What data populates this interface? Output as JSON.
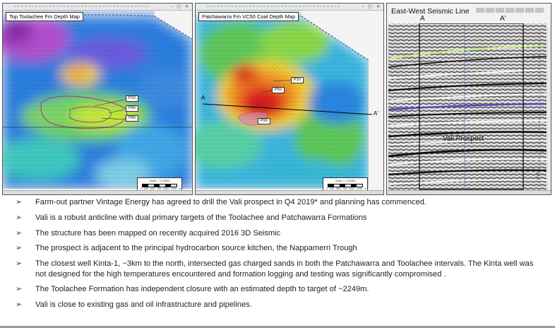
{
  "panels": {
    "toolachee": {
      "title": "Top Toolachee Fm Depth Map",
      "tags": [
        "P10",
        "P50",
        "P90"
      ],
      "scale_text": "Scale = 1:25000",
      "scale_ticks": "0 250 500 750 1000 1250 m"
    },
    "patchawarra": {
      "title": "Patchawarra Fm VC50 Coal Depth Map",
      "tags": [
        "P10",
        "P50",
        "P90"
      ],
      "line_start": "A",
      "line_end": "A'",
      "scale_text": "Scale = 1:25000",
      "scale_ticks": "0 250 500 750 1000 1250 m"
    },
    "seismic": {
      "title": "East-West Seismic Line",
      "left_marker": "A",
      "right_marker": "A'",
      "prospect_label": "Vali Prospect",
      "depth_label": "100 ms"
    }
  },
  "bullets": [
    "Farm-out partner Vintage Energy has agreed to drill the Vali prospect in Q4 2019* and planning has commenced.",
    "Vali is a robust anticline with dual primary targets of the Toolachee and Patchawarra Formations",
    "The structure has been mapped on recently acquired 2016 3D Seismic",
    "The prospect is adjacent to the principal hydrocarbon source kitchen, the Nappamerri Trough",
    "The closest well Kinta-1, ~3km to the north, intersected gas charged sands in both the Patchawarra and Toolachee intervals. The Kinta well was not designed for the high temperatures encountered and formation logging and testing was significantly compromised .",
    "The Toolachee Formation has independent closure with an estimated depth to target of ~2249m.",
    "Vali is close to existing gas and oil infrastructure and pipelines."
  ],
  "bullet_icon": "arrow-bullet-icon",
  "colors": {
    "map_high": "#e0261e",
    "map_low": "#8a2aa8",
    "seismic_horizon_1": "#c8f08a",
    "seismic_horizon_2": "#6a3cc8"
  }
}
